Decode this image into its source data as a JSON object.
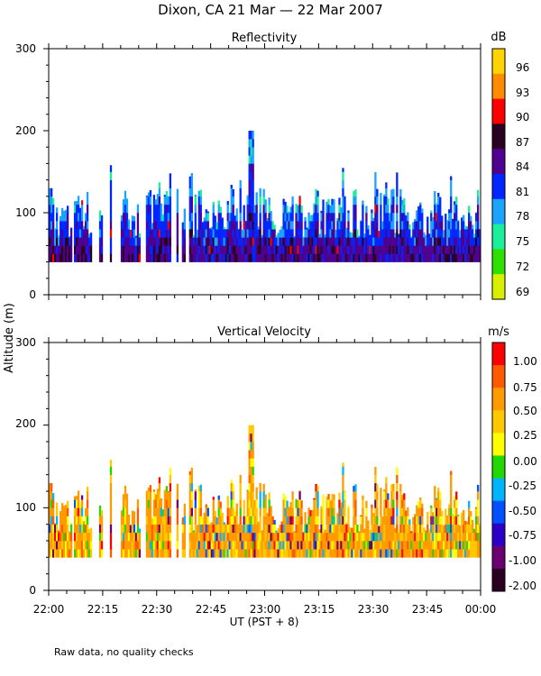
{
  "title": "Dixon, CA 21 Mar — 22 Mar 2007",
  "y_axis_label": "Altitude (m)",
  "x_axis_label": "UT  (PST + 8)",
  "footnote": "Raw data, no quality checks",
  "chart_data": [
    {
      "type": "heatmap",
      "panel": "reflectivity",
      "title": "Reflectivity",
      "ylabel": "Altitude (m)",
      "xlabel": "UT  (PST + 8)",
      "ylim": [
        0,
        300
      ],
      "y_ticks": [
        "0",
        "100",
        "200",
        "300"
      ],
      "xlim_minutes": [
        0,
        120
      ],
      "x_ticks": [
        "22:00",
        "22:15",
        "22:30",
        "22:45",
        "23:00",
        "23:15",
        "23:30",
        "23:45",
        "00:00"
      ],
      "colorbar": {
        "unit": "dB",
        "labels": [
          "96",
          "93",
          "90",
          "87",
          "84",
          "81",
          "78",
          "75",
          "72",
          "69"
        ],
        "colors": [
          "#ffd400",
          "#ff8c00",
          "#ff0000",
          "#2a0022",
          "#500090",
          "#0026ff",
          "#1aa3ff",
          "#1aef9c",
          "#2ee000",
          "#d8f000"
        ]
      },
      "echo_base_m": 40,
      "echo_top_typical_m": 100,
      "echo_top_max_m": 200,
      "gaps_minutes": [
        [
          6.5,
          7
        ],
        [
          12,
          14
        ],
        [
          14.6,
          17
        ],
        [
          17.4,
          19.8
        ],
        [
          25.3,
          27
        ],
        [
          34,
          35.3
        ],
        [
          35.8,
          37
        ],
        [
          37.6,
          39
        ]
      ]
    },
    {
      "type": "heatmap",
      "panel": "vertical_velocity",
      "title": "Vertical Velocity",
      "ylabel": "Altitude (m)",
      "xlabel": "UT  (PST + 8)",
      "ylim": [
        0,
        300
      ],
      "y_ticks": [
        "0",
        "100",
        "200",
        "300"
      ],
      "xlim_minutes": [
        0,
        120
      ],
      "x_ticks": [
        "22:00",
        "22:15",
        "22:30",
        "22:45",
        "23:00",
        "23:15",
        "23:30",
        "23:45",
        "00:00"
      ],
      "colorbar": {
        "unit": "m/s",
        "labels": [
          "1.00",
          "0.75",
          "0.50",
          "0.25",
          "0.00",
          "-0.25",
          "-0.50",
          "-0.75",
          "-1.00",
          "-2.00"
        ],
        "colors": [
          "#ff0000",
          "#ff5a00",
          "#ff9a00",
          "#ffc800",
          "#ffff00",
          "#22d800",
          "#00b4ff",
          "#0050ff",
          "#2a00c8",
          "#6a0070",
          "#2a0022"
        ]
      },
      "echo_base_m": 40,
      "echo_top_typical_m": 100,
      "echo_top_max_m": 200,
      "gaps_minutes": [
        [
          6.5,
          7
        ],
        [
          12,
          14
        ],
        [
          14.6,
          17
        ],
        [
          17.4,
          19.8
        ],
        [
          25.3,
          27
        ],
        [
          34,
          35.3
        ],
        [
          35.8,
          37
        ],
        [
          37.6,
          39
        ]
      ]
    }
  ]
}
